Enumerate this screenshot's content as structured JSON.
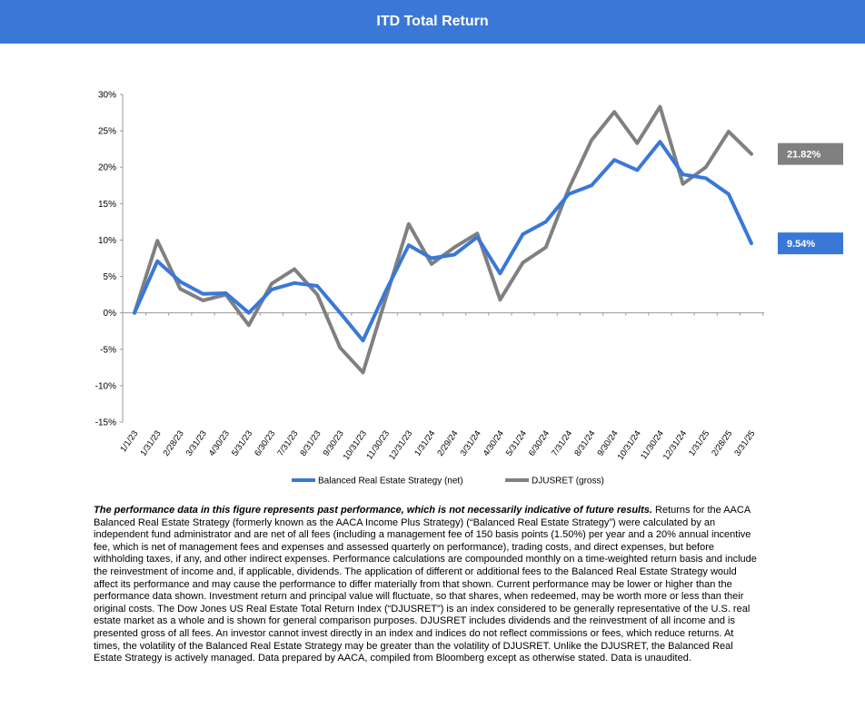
{
  "header": {
    "title": "ITD Total Return"
  },
  "chart_data": {
    "type": "line",
    "title": "ITD Total Return",
    "categories": [
      "1/1/23",
      "1/31/23",
      "2/28/23",
      "3/31/23",
      "4/30/23",
      "5/31/23",
      "6/30/23",
      "7/31/23",
      "8/31/23",
      "9/30/23",
      "10/31/23",
      "11/30/23",
      "12/31/23",
      "1/31/24",
      "2/29/24",
      "3/31/24",
      "4/30/24",
      "5/31/24",
      "6/30/24",
      "7/31/24",
      "8/31/24",
      "9/30/24",
      "10/31/24",
      "11/30/24",
      "12/31/24",
      "1/31/25",
      "2/28/25",
      "3/31/25"
    ],
    "y_ticks": [
      30,
      25,
      20,
      15,
      10,
      5,
      0,
      -5,
      -10,
      -15
    ],
    "y_tick_labels": [
      "30%",
      "25%",
      "20%",
      "15%",
      "10%",
      "5%",
      "0%",
      "-5%",
      "-10%",
      "-15%"
    ],
    "ylim": [
      -15,
      30
    ],
    "series": [
      {
        "name": "Balanced Real Estate Strategy (net)",
        "color": "#3a78d8",
        "values": [
          0,
          7.1,
          4.3,
          2.6,
          2.7,
          0.0,
          3.2,
          4.1,
          3.7,
          0.0,
          -3.8,
          3.0,
          9.3,
          7.5,
          8.0,
          10.4,
          5.4,
          10.8,
          12.5,
          16.3,
          17.5,
          21.0,
          19.6,
          23.5,
          19.0,
          18.5,
          16.3,
          9.54
        ],
        "end_label": "9.54%"
      },
      {
        "name": "DJUSRET (gross)",
        "color": "#808080",
        "values": [
          0,
          9.9,
          3.3,
          1.7,
          2.5,
          -1.7,
          4.0,
          6.0,
          2.5,
          -4.8,
          -8.2,
          2.0,
          12.2,
          6.7,
          9.0,
          10.9,
          1.8,
          6.9,
          9.0,
          17.0,
          23.7,
          27.6,
          23.3,
          28.3,
          17.7,
          20.0,
          24.9,
          21.82
        ],
        "end_label": "21.82%"
      }
    ],
    "legend_position": "bottom"
  },
  "disclaimer": {
    "lead": "The performance data in this figure represents past performance, which is not necessarily indicative of future results.",
    "body": " Returns for the AACA  Balanced Real Estate Strategy (formerly known as the AACA  Income Plus Strategy) (“Balanced Real Estate Strategy”) were calculated by  an independent fund administrator and are net of all fees (including a management fee of 150 basis points (1.50%) per year and a 20% annual incentive fee, which is net of management fees and expenses and assessed quarterly on performance), trading costs, and direct expenses, but before withholding taxes, if any,  and other indirect expenses. Performance calculations are compounded monthly on a time-weighted return basis and include the reinvestment of income and, if applicable, dividends. The application of different or additional fees to the Balanced Real Estate Strategy would affect its performance and may cause the performance to differ materially from that shown. Current performance may be lower or higher than the performance data shown. Investment return and principal value will fluctuate, so that shares, when redeemed, may be worth more or less than their original costs. The Dow Jones US Real Estate Total Return Index (“DJUSRET”) is an index considered to be generally representative of the U.S. real estate market as a whole and is shown for general comparison purposes. DJUSRET includes dividends and the reinvestment of all income and is presented gross of all fees. An investor cannot invest directly in an index and indices do not reflect commissions or fees, which reduce returns. At times, the volatility of the Balanced Real Estate Strategy may be greater than the volatility of DJUSRET. Unlike the DJUSRET, the Balanced Real Estate Strategy is actively managed. Data prepared by AACA,  compiled from Bloomberg except as otherwise stated. Data is unaudited."
  }
}
